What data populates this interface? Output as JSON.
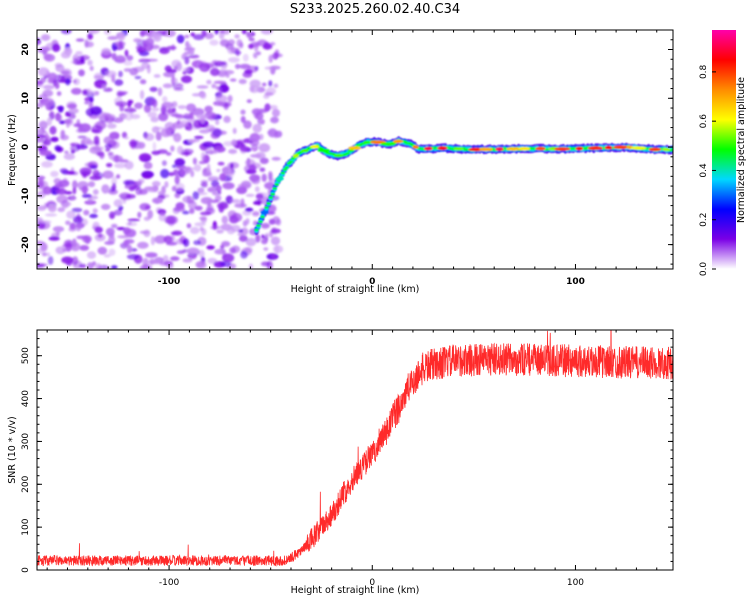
{
  "figure": {
    "title": "S233.2025.260.02.40.C34"
  },
  "colors": {
    "signal": "#ff2a2a",
    "axis": "#000000",
    "background": "#ffffff",
    "colormap": [
      "#ffffff",
      "#7a00e6",
      "#0000ff",
      "#00d8ff",
      "#00ff00",
      "#ffff00",
      "#ff8c00",
      "#ff0000",
      "#ff00aa"
    ]
  },
  "chart_data": [
    {
      "type": "heatmap",
      "title": "S233.2025.260.02.40.C34",
      "xlabel": "Height of straight line (km)",
      "ylabel": "Frequency (Hz)",
      "xlim": [
        -165,
        148
      ],
      "ylim": [
        -25,
        24
      ],
      "x_ticks": [
        -100,
        0,
        100
      ],
      "x_tick_labels": [
        "-100",
        "0",
        "100"
      ],
      "y_ticks": [
        -20,
        -10,
        0,
        10,
        20
      ],
      "y_tick_labels": [
        "-20",
        "-10",
        "0",
        "10",
        "20"
      ],
      "noise_region_x": [
        -165,
        -52
      ],
      "ridge": {
        "x": [
          -57,
          -52,
          -47,
          -42,
          -37,
          -32,
          -27,
          -22,
          -17,
          -12,
          -7,
          -2,
          3,
          8,
          13,
          18,
          23,
          35,
          50,
          65,
          80,
          95,
          110,
          125,
          140,
          148
        ],
        "frequency": [
          -17,
          -12.5,
          -7.5,
          -4,
          -1.5,
          -0.5,
          0.3,
          -1.3,
          -1.8,
          -1.2,
          0.3,
          1.1,
          1.0,
          0.6,
          1.2,
          0.8,
          -0.4,
          -0.2,
          -0.5,
          -0.4,
          -0.3,
          -0.4,
          -0.2,
          0.0,
          -0.5,
          -0.5
        ],
        "peak_amplitude": [
          0.35,
          0.45,
          0.5,
          0.55,
          0.6,
          0.7,
          0.75,
          0.8,
          0.75,
          0.75,
          0.7,
          0.75,
          0.8,
          0.85,
          0.9,
          0.95,
          0.9,
          0.9,
          0.85,
          0.95,
          0.9,
          0.9,
          0.95,
          0.9,
          0.95,
          0.9
        ]
      },
      "colorbar": {
        "label": "Normalized spectral amplitude",
        "range": [
          0.0,
          0.97
        ],
        "ticks": [
          0.0,
          0.2,
          0.4,
          0.6,
          0.8
        ],
        "tick_labels": [
          "0.0",
          "0.2",
          "0.4",
          "0.6",
          "0.8"
        ]
      }
    },
    {
      "type": "line",
      "xlabel": "Height of straight line (km)",
      "ylabel": "SNR (10 * v/v)",
      "xlim": [
        -165,
        148
      ],
      "ylim": [
        0,
        560
      ],
      "x_ticks": [
        -100,
        0,
        100
      ],
      "x_tick_labels": [
        "-100",
        "0",
        "100"
      ],
      "y_ticks": [
        0,
        100,
        200,
        300,
        400,
        500
      ],
      "y_tick_labels": [
        "0",
        "100",
        "200",
        "300",
        "400",
        "500"
      ],
      "series": [
        {
          "name": "SNR",
          "x": [
            -165,
            -45,
            -42,
            -35,
            -28,
            -20,
            -15,
            -10,
            -5,
            0,
            5,
            10,
            15,
            20,
            25,
            30,
            40,
            60,
            80,
            100,
            120,
            140,
            148
          ],
          "values": [
            22,
            22,
            22,
            45,
            80,
            130,
            170,
            210,
            240,
            270,
            305,
            350,
            400,
            440,
            470,
            480,
            488,
            492,
            490,
            488,
            485,
            483,
            483
          ],
          "noise_amplitude": 12
        }
      ]
    }
  ]
}
